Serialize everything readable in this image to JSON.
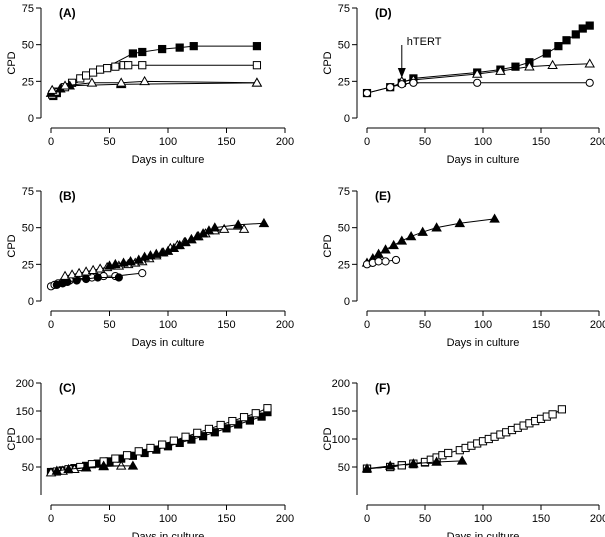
{
  "chart_data": [
    {
      "type": "scatter",
      "panel_label": "(A)",
      "xlabel": "Days in culture",
      "ylabel": "CPD",
      "xlim": [
        0,
        200
      ],
      "ylim": [
        0,
        75
      ],
      "xticks": [
        0,
        50,
        100,
        150,
        200
      ],
      "yticks": [
        0,
        25,
        50,
        75
      ],
      "series": [
        {
          "name": "filled-square",
          "marker": "square-filled",
          "x": [
            2,
            5,
            70,
            78,
            95,
            110,
            122,
            176
          ],
          "y": [
            15,
            17,
            44,
            45,
            47,
            48,
            49,
            49
          ]
        },
        {
          "name": "open-square",
          "marker": "square-open",
          "x": [
            1,
            4,
            12,
            18,
            25,
            30,
            36,
            42,
            48,
            55,
            62,
            66,
            78,
            176
          ],
          "y": [
            16,
            18,
            21,
            24,
            27,
            29,
            31,
            33,
            34,
            35,
            36,
            36,
            36,
            36
          ]
        },
        {
          "name": "filled-triangle",
          "marker": "triangle-filled",
          "x": [
            0,
            8,
            16,
            60,
            176
          ],
          "y": [
            17,
            20,
            22,
            23,
            24
          ]
        },
        {
          "name": "open-triangle",
          "marker": "triangle-open",
          "x": [
            1,
            12,
            35,
            60,
            80,
            176
          ],
          "y": [
            19,
            22,
            24,
            24,
            25,
            24
          ]
        }
      ]
    },
    {
      "type": "scatter",
      "panel_label": "(D)",
      "xlabel": "Days in culture",
      "ylabel": "CPD",
      "xlim": [
        0,
        200
      ],
      "ylim": [
        0,
        75
      ],
      "xticks": [
        0,
        50,
        100,
        150,
        200
      ],
      "yticks": [
        0,
        25,
        50,
        75
      ],
      "annotation": "hTERT",
      "annotation_x": 30,
      "series": [
        {
          "name": "filled-square",
          "marker": "square-filled",
          "x": [
            0,
            20,
            30,
            40,
            95,
            115,
            128,
            140,
            155,
            165,
            172,
            180,
            186,
            192
          ],
          "y": [
            17,
            21,
            24,
            27,
            31,
            33,
            35,
            38,
            44,
            49,
            53,
            57,
            61,
            63
          ]
        },
        {
          "name": "open-triangle",
          "marker": "triangle-open",
          "x": [
            30,
            40,
            95,
            115,
            140,
            160,
            192
          ],
          "y": [
            25,
            26,
            30,
            32,
            35,
            36,
            37
          ]
        },
        {
          "name": "open-circle",
          "marker": "circle-open",
          "x": [
            0,
            20,
            30,
            40,
            95,
            192
          ],
          "y": [
            17,
            21,
            23,
            24,
            24,
            24
          ]
        }
      ]
    },
    {
      "type": "scatter",
      "panel_label": "(B)",
      "xlabel": "Days in culture",
      "ylabel": "CPD",
      "xlim": [
        0,
        200
      ],
      "ylim": [
        0,
        75
      ],
      "xticks": [
        0,
        50,
        100,
        150,
        200
      ],
      "yticks": [
        0,
        25,
        50,
        75
      ],
      "series": [
        {
          "name": "open-circle",
          "marker": "circle-open",
          "x": [
            0,
            3,
            6,
            10,
            16,
            22,
            35,
            45,
            55,
            78
          ],
          "y": [
            10,
            11,
            12,
            13,
            14,
            15,
            16,
            17,
            17,
            19
          ]
        },
        {
          "name": "filled-circle",
          "marker": "circle-filled",
          "x": [
            5,
            10,
            14,
            22,
            30,
            40,
            58
          ],
          "y": [
            11,
            12,
            13,
            14,
            15,
            16,
            16
          ]
        },
        {
          "name": "open-triangle",
          "marker": "triangle-open",
          "x": [
            12,
            18,
            24,
            30,
            36,
            42,
            48,
            58,
            66,
            72,
            78,
            84,
            90,
            96,
            102,
            108,
            114,
            120,
            126,
            132,
            140,
            148,
            165
          ],
          "y": [
            17,
            18,
            19,
            20,
            21,
            22,
            23,
            24,
            25,
            26,
            27,
            29,
            31,
            33,
            36,
            38,
            40,
            42,
            44,
            46,
            48,
            49,
            49
          ]
        },
        {
          "name": "filled-triangle",
          "marker": "triangle-filled",
          "x": [
            50,
            55,
            62,
            68,
            75,
            80,
            85,
            90,
            95,
            100,
            105,
            110,
            115,
            120,
            125,
            130,
            135,
            140,
            160,
            182
          ],
          "y": [
            24,
            25,
            26,
            27,
            28,
            30,
            31,
            32,
            33,
            34,
            36,
            38,
            40,
            42,
            44,
            46,
            48,
            50,
            52,
            53
          ]
        }
      ]
    },
    {
      "type": "scatter",
      "panel_label": "(E)",
      "xlabel": "Days in culture",
      "ylabel": "CPD",
      "xlim": [
        0,
        200
      ],
      "ylim": [
        0,
        75
      ],
      "xticks": [
        0,
        50,
        100,
        150,
        200
      ],
      "yticks": [
        0,
        25,
        50,
        75
      ],
      "series": [
        {
          "name": "filled-triangle",
          "marker": "triangle-filled",
          "x": [
            0,
            5,
            10,
            16,
            23,
            30,
            38,
            48,
            60,
            80,
            110
          ],
          "y": [
            26,
            29,
            32,
            35,
            38,
            41,
            44,
            47,
            50,
            53,
            56
          ]
        },
        {
          "name": "open-circle",
          "marker": "circle-open",
          "x": [
            0,
            5,
            10,
            16,
            25
          ],
          "y": [
            25,
            26,
            27,
            27,
            28
          ]
        }
      ]
    },
    {
      "type": "scatter",
      "panel_label": "(C)",
      "xlabel": "Days in culture",
      "ylabel": "CPD",
      "xlim": [
        0,
        200
      ],
      "ylim": [
        0,
        200
      ],
      "xticks": [
        0,
        50,
        100,
        150,
        200
      ],
      "yticks": [
        50,
        100,
        150,
        200
      ],
      "series": [
        {
          "name": "filled-square",
          "marker": "square-filled",
          "x": [
            0,
            10,
            20,
            30,
            40,
            50,
            60,
            70,
            80,
            90,
            100,
            110,
            120,
            130,
            140,
            150,
            160,
            170,
            180,
            185
          ],
          "y": [
            41,
            44,
            48,
            52,
            56,
            60,
            65,
            70,
            75,
            81,
            87,
            93,
            99,
            105,
            112,
            119,
            126,
            133,
            140,
            148
          ]
        },
        {
          "name": "open-square",
          "marker": "square-open",
          "x": [
            5,
            15,
            25,
            35,
            45,
            55,
            65,
            75,
            85,
            95,
            105,
            115,
            125,
            135,
            145,
            155,
            165,
            175,
            185
          ],
          "y": [
            42,
            46,
            50,
            55,
            60,
            65,
            71,
            78,
            84,
            90,
            97,
            104,
            111,
            118,
            125,
            132,
            139,
            146,
            155
          ]
        },
        {
          "name": "open-triangle",
          "marker": "triangle-open",
          "x": [
            0,
            10,
            20,
            30,
            45,
            60
          ],
          "y": [
            40,
            43,
            46,
            49,
            51,
            52
          ]
        },
        {
          "name": "filled-triangle",
          "marker": "triangle-filled",
          "x": [
            5,
            15,
            30,
            45,
            70
          ],
          "y": [
            43,
            46,
            49,
            52,
            52
          ]
        }
      ]
    },
    {
      "type": "scatter",
      "panel_label": "(F)",
      "xlabel": "Days in culture",
      "ylabel": "CPD",
      "xlim": [
        0,
        200
      ],
      "ylim": [
        0,
        200
      ],
      "xticks": [
        0,
        50,
        100,
        150,
        200
      ],
      "yticks": [
        50,
        100,
        150,
        200
      ],
      "series": [
        {
          "name": "filled-square",
          "marker": "square-filled",
          "x": [
            0,
            20,
            30,
            40,
            50,
            60
          ],
          "y": [
            47,
            50,
            53,
            55,
            58,
            61
          ]
        },
        {
          "name": "open-square",
          "marker": "square-open",
          "x": [
            0,
            20,
            30,
            40,
            50,
            55,
            60,
            65,
            70,
            80,
            85,
            90,
            95,
            100,
            105,
            110,
            115,
            120,
            125,
            130,
            135,
            140,
            145,
            150,
            155,
            160,
            168
          ],
          "y": [
            47,
            50,
            53,
            56,
            59,
            63,
            67,
            71,
            75,
            80,
            84,
            88,
            92,
            96,
            100,
            104,
            108,
            112,
            116,
            120,
            124,
            128,
            132,
            136,
            140,
            144,
            153
          ]
        },
        {
          "name": "filled-triangle",
          "marker": "triangle-filled",
          "x": [
            0,
            20,
            40,
            60,
            82
          ],
          "y": [
            47,
            52,
            56,
            59,
            61
          ]
        }
      ]
    }
  ]
}
